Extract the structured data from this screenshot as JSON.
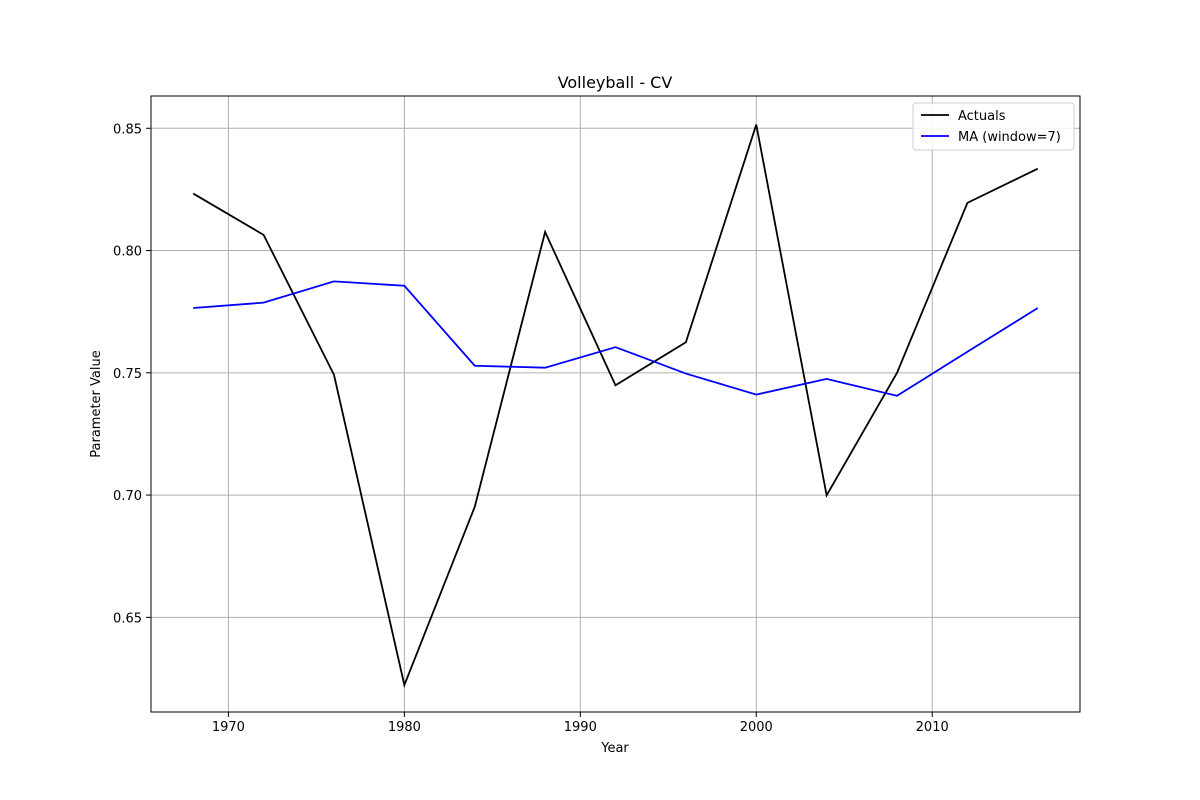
{
  "chart_data": {
    "type": "line",
    "title": "Volleyball - CV",
    "xlabel": "Year",
    "ylabel": "Parameter Value",
    "xlim": [
      1965.6,
      2018.4
    ],
    "ylim": [
      0.6113,
      0.8632
    ],
    "xticks": [
      1970,
      1980,
      1990,
      2000,
      2010
    ],
    "yticks": [
      0.65,
      0.7,
      0.75,
      0.8,
      0.85
    ],
    "xtick_labels": [
      "1970",
      "1980",
      "1990",
      "2000",
      "2010"
    ],
    "ytick_labels": [
      "0.65",
      "0.70",
      "0.75",
      "0.80",
      "0.85"
    ],
    "grid": true,
    "legend_position": "top-right",
    "x": [
      1968,
      1972,
      1976,
      1980,
      1984,
      1988,
      1992,
      1996,
      2000,
      2004,
      2008,
      2012,
      2016
    ],
    "series": [
      {
        "name": "Actuals",
        "color": "#000000",
        "values": [
          0.8233,
          0.8064,
          0.7492,
          0.6223,
          0.6952,
          0.8076,
          0.7449,
          0.7625,
          0.8515,
          0.6999,
          0.75,
          0.8195,
          0.8335
        ]
      },
      {
        "name": "MA (window=7)",
        "color": "#0000ff",
        "values": [
          0.7765,
          0.7787,
          0.7874,
          0.7856,
          0.7529,
          0.7521,
          0.7605,
          0.7497,
          0.7411,
          0.7475,
          0.7406,
          0.7586,
          0.7765
        ]
      }
    ]
  }
}
